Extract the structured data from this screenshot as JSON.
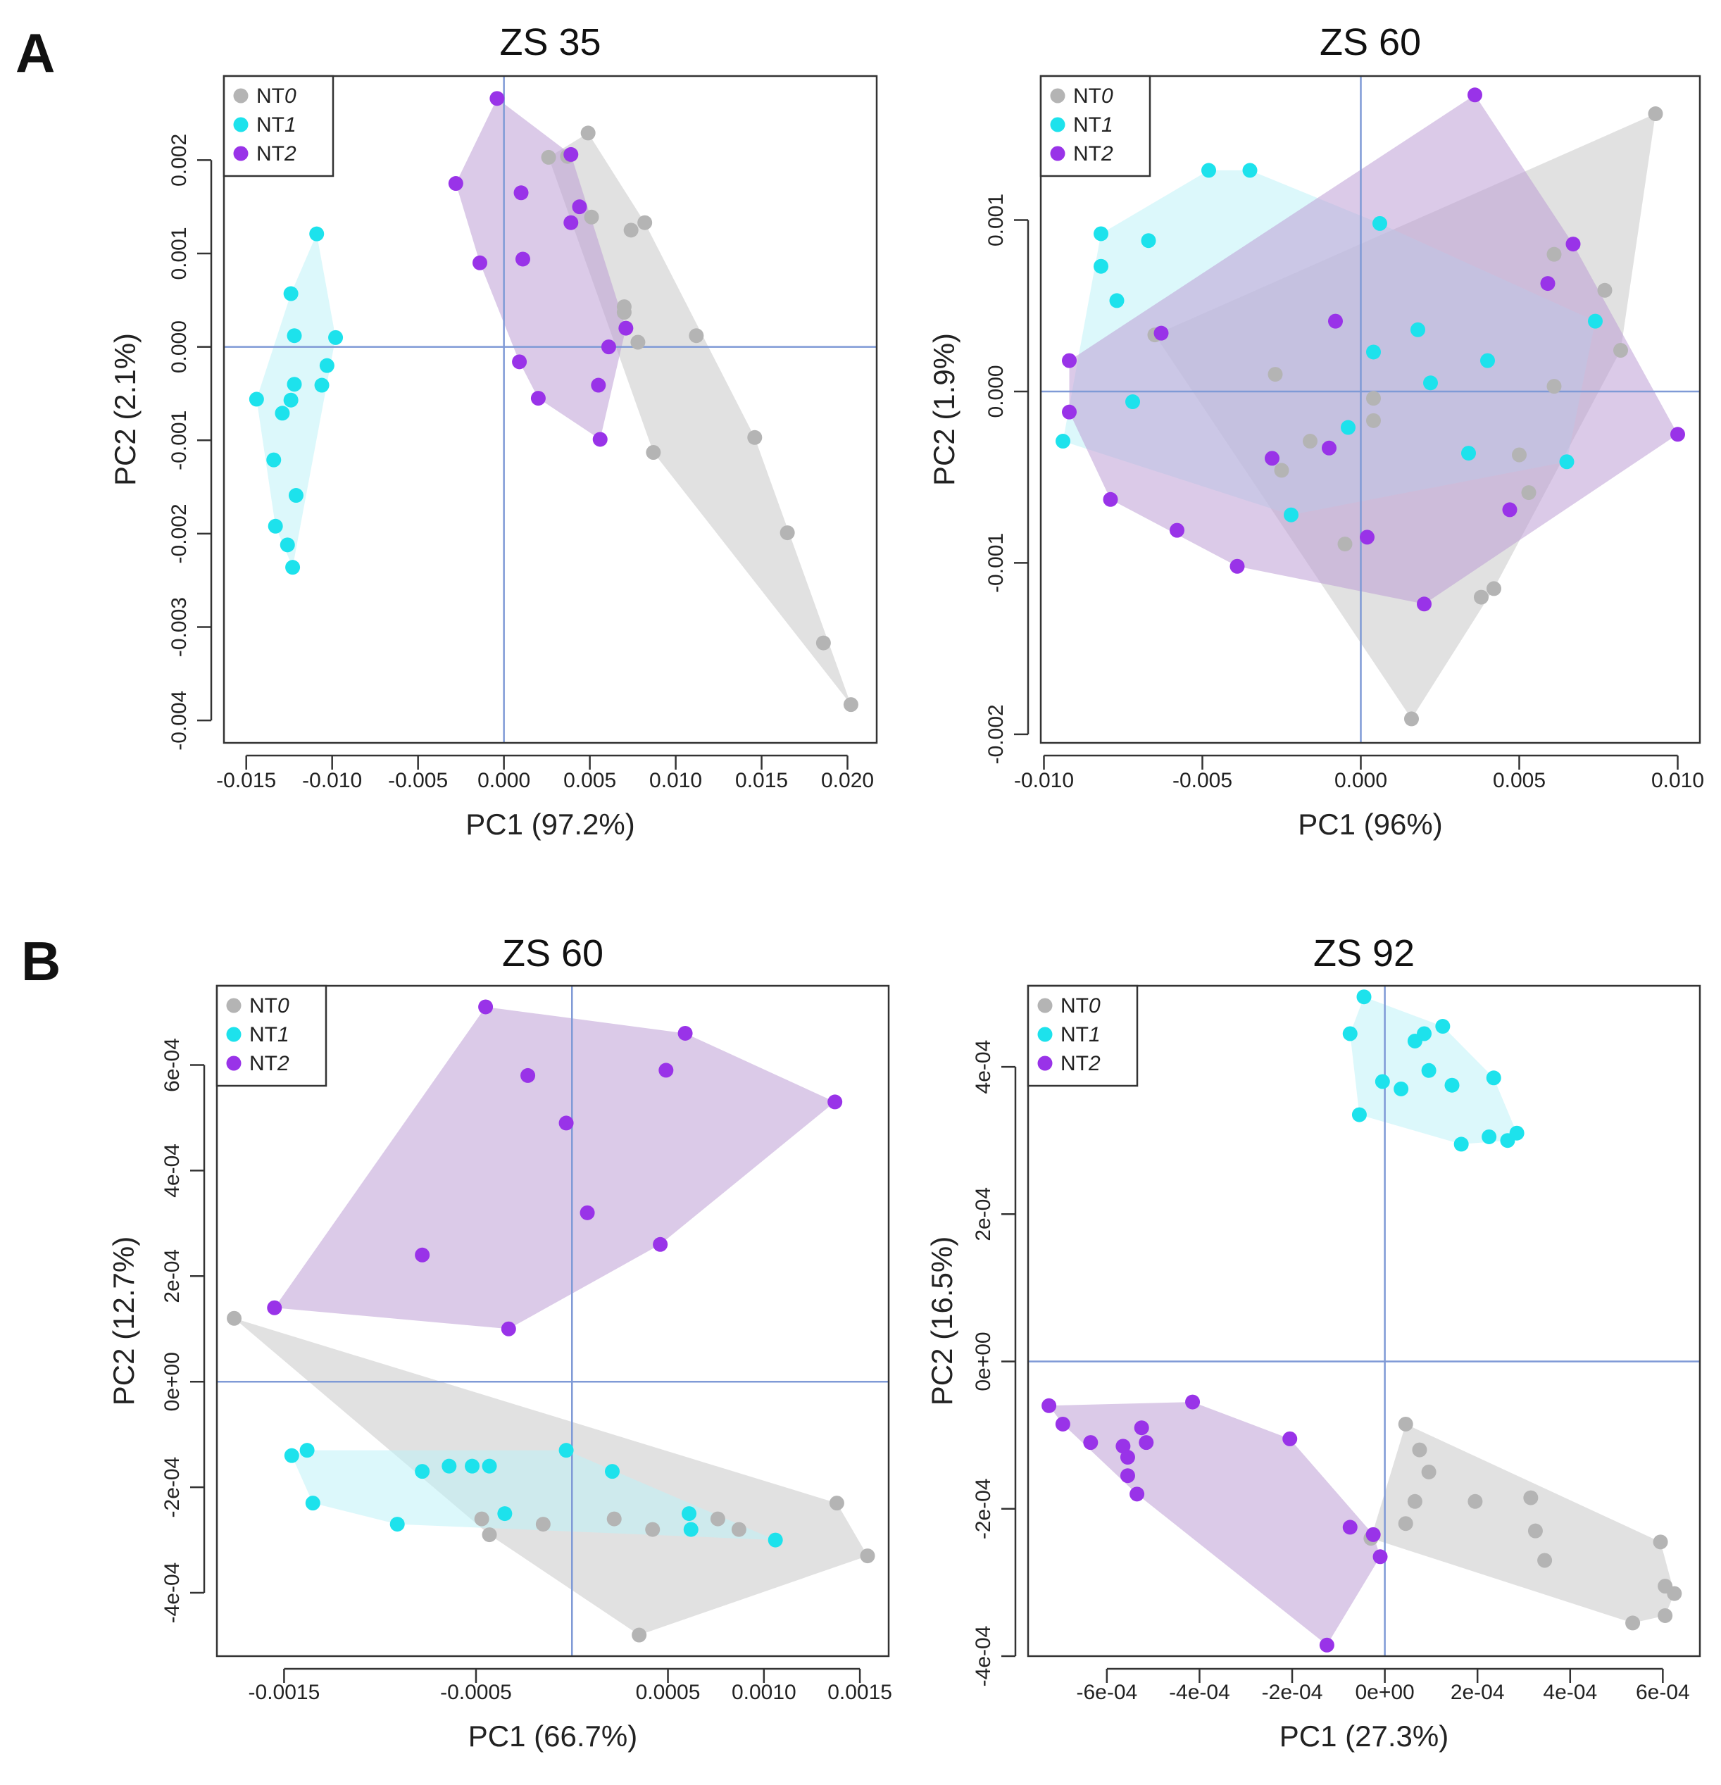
{
  "panel_labels": [
    "A",
    "B"
  ],
  "groups": [
    {
      "name": "NT0",
      "prefix": "NT",
      "suffix": "0",
      "color": "#b4b4b4",
      "fill": "#c9c9c9"
    },
    {
      "name": "NT1",
      "prefix": "NT",
      "suffix": "1",
      "color": "#1de2ec",
      "fill": "#bff3f7"
    },
    {
      "name": "NT2",
      "prefix": "NT",
      "suffix": "2",
      "color": "#9933e8",
      "fill": "#bd9fd6"
    }
  ],
  "axis_line_color": "#7f9ad6",
  "chart_data": [
    {
      "type": "scatter",
      "panel": "A",
      "title": "ZS 35",
      "xlabel": "PC1 (97.2%)",
      "ylabel": "PC2 (2.1%)",
      "xlim": [
        -0.0163,
        0.0217
      ],
      "ylim": [
        -0.00424,
        0.0029
      ],
      "xticks": [
        -0.015,
        -0.01,
        -0.005,
        0.0,
        0.005,
        0.01,
        0.015,
        0.02
      ],
      "xtick_labels": [
        "-0.015",
        "-0.010",
        "-0.005",
        "0.000",
        "0.005",
        "0.010",
        "0.015",
        "0.020"
      ],
      "yticks": [
        0.002,
        0.001,
        0.0,
        -0.001,
        -0.002,
        -0.003,
        -0.004
      ],
      "ytick_labels": [
        "0.002",
        "0.001",
        "0.000",
        "-0.001",
        "-0.002",
        "-0.003",
        "-0.004"
      ],
      "series": [
        {
          "name": "NT0",
          "points": [
            [
              0.0026,
              0.00203
            ],
            [
              0.0037,
              0.00204
            ],
            [
              0.0049,
              0.00229
            ],
            [
              0.0051,
              0.00139
            ],
            [
              0.0074,
              0.00125
            ],
            [
              0.0082,
              0.00133
            ],
            [
              0.007,
              0.00043
            ],
            [
              0.007,
              0.00037
            ],
            [
              0.0078,
              5e-05
            ],
            [
              0.0112,
              0.00012
            ],
            [
              0.0087,
              -0.00113
            ],
            [
              0.0146,
              -0.00097
            ],
            [
              0.0165,
              -0.00199
            ],
            [
              0.0186,
              -0.00317
            ],
            [
              0.0202,
              -0.00383
            ]
          ]
        },
        {
          "name": "NT1",
          "points": [
            [
              -0.0109,
              0.00121
            ],
            [
              -0.0124,
              0.00057
            ],
            [
              -0.0122,
              0.00012
            ],
            [
              -0.0098,
              0.0001
            ],
            [
              -0.0103,
              -0.0002
            ],
            [
              -0.0122,
              -0.0004
            ],
            [
              -0.0106,
              -0.00041
            ],
            [
              -0.0144,
              -0.00056
            ],
            [
              -0.0124,
              -0.00057
            ],
            [
              -0.0129,
              -0.00071
            ],
            [
              -0.0134,
              -0.00121
            ],
            [
              -0.0121,
              -0.00159
            ],
            [
              -0.0133,
              -0.00192
            ],
            [
              -0.0126,
              -0.00212
            ],
            [
              -0.0123,
              -0.00236
            ]
          ]
        },
        {
          "name": "NT2",
          "points": [
            [
              -0.0004,
              0.00266
            ],
            [
              0.0039,
              0.00206
            ],
            [
              -0.0028,
              0.00175
            ],
            [
              0.001,
              0.00165
            ],
            [
              0.0044,
              0.0015
            ],
            [
              0.0039,
              0.00133
            ],
            [
              -0.0014,
              0.0009
            ],
            [
              0.0011,
              0.00094
            ],
            [
              0.0071,
              0.0002
            ],
            [
              0.0061,
              0.0
            ],
            [
              0.0009,
              -0.00016
            ],
            [
              0.002,
              -0.00055
            ],
            [
              0.0055,
              -0.00041
            ],
            [
              0.0056,
              -0.00099
            ]
          ]
        }
      ]
    },
    {
      "type": "scatter",
      "panel": "A",
      "title": "ZS 60",
      "xlabel": "PC1 (96%)",
      "ylabel": "PC2 (1.9%)",
      "xlim": [
        -0.0101,
        0.0107
      ],
      "ylim": [
        -0.00205,
        0.00184
      ],
      "xticks": [
        -0.01,
        -0.005,
        0.0,
        0.005,
        0.01
      ],
      "xtick_labels": [
        "-0.010",
        "-0.005",
        "0.000",
        "0.005",
        "0.010"
      ],
      "yticks": [
        0.001,
        0.0,
        -0.001,
        -0.002
      ],
      "ytick_labels": [
        "0.001",
        "0.000",
        "-0.001",
        "-0.002"
      ],
      "series": [
        {
          "name": "NT0",
          "points": [
            [
              0.0093,
              0.00162
            ],
            [
              0.0061,
              0.0008
            ],
            [
              0.0077,
              0.00059
            ],
            [
              0.0082,
              0.00024
            ],
            [
              -0.0065,
              0.00033
            ],
            [
              -0.0027,
              0.0001
            ],
            [
              0.0004,
              -4e-05
            ],
            [
              0.0061,
              3e-05
            ],
            [
              0.0004,
              -0.00017
            ],
            [
              -0.0016,
              -0.00029
            ],
            [
              -0.0025,
              -0.00046
            ],
            [
              0.005,
              -0.00037
            ],
            [
              0.0053,
              -0.00059
            ],
            [
              -0.0005,
              -0.00089
            ],
            [
              0.0042,
              -0.00115
            ],
            [
              0.0038,
              -0.0012
            ],
            [
              0.0016,
              -0.00191
            ]
          ]
        },
        {
          "name": "NT1",
          "points": [
            [
              -0.0048,
              0.00129
            ],
            [
              -0.0035,
              0.00129
            ],
            [
              -0.0082,
              0.00092
            ],
            [
              -0.0067,
              0.00088
            ],
            [
              0.0006,
              0.00098
            ],
            [
              -0.0082,
              0.00073
            ],
            [
              -0.0077,
              0.00053
            ],
            [
              0.0074,
              0.00041
            ],
            [
              0.0018,
              0.00036
            ],
            [
              0.0004,
              0.00023
            ],
            [
              0.004,
              0.00018
            ],
            [
              0.0022,
              5e-05
            ],
            [
              -0.0072,
              -6e-05
            ],
            [
              -0.0004,
              -0.00021
            ],
            [
              -0.0094,
              -0.00029
            ],
            [
              0.0034,
              -0.00036
            ],
            [
              0.0065,
              -0.00041
            ],
            [
              -0.0022,
              -0.00072
            ]
          ]
        },
        {
          "name": "NT2",
          "points": [
            [
              0.0036,
              0.00173
            ],
            [
              0.0067,
              0.00086
            ],
            [
              0.0059,
              0.00063
            ],
            [
              -0.0063,
              0.00034
            ],
            [
              -0.0008,
              0.00041
            ],
            [
              -0.0092,
              0.00018
            ],
            [
              -0.0092,
              -0.00012
            ],
            [
              -0.001,
              -0.00033
            ],
            [
              -0.0028,
              -0.00039
            ],
            [
              0.01,
              -0.00025
            ],
            [
              -0.0079,
              -0.00063
            ],
            [
              -0.0058,
              -0.00081
            ],
            [
              0.0047,
              -0.00069
            ],
            [
              0.0002,
              -0.00085
            ],
            [
              -0.0039,
              -0.00102
            ],
            [
              0.002,
              -0.00124
            ]
          ]
        }
      ]
    },
    {
      "type": "scatter",
      "panel": "B",
      "title": "ZS 60",
      "xlabel": "PC1 (66.7%)",
      "ylabel": "PC2 (12.7%)",
      "xlim": [
        -0.00185,
        0.00165
      ],
      "ylim": [
        -0.00052,
        0.00075
      ],
      "xticks": [
        -0.0015,
        -0.0005,
        0.0005,
        0.001,
        0.0015
      ],
      "xtick_labels": [
        "-0.0015",
        "-0.0005",
        "0.0005",
        "0.0010",
        "0.0015"
      ],
      "yticks": [
        0.0006,
        0.0004,
        0.0002,
        0.0,
        -0.0002,
        -0.0004
      ],
      "ytick_labels": [
        "6e-04",
        "4e-04",
        "2e-04",
        "0e+00",
        "-2e-04",
        "-4e-04"
      ],
      "series": [
        {
          "name": "NT0",
          "points": [
            [
              -0.00176,
              0.00012
            ],
            [
              0.00138,
              -0.00023
            ],
            [
              0.00154,
              -0.00033
            ],
            [
              0.00035,
              -0.00048
            ],
            [
              -0.00047,
              -0.00026
            ],
            [
              -0.00043,
              -0.00029
            ],
            [
              -0.00015,
              -0.00027
            ],
            [
              0.00022,
              -0.00026
            ],
            [
              0.00042,
              -0.00028
            ],
            [
              0.00076,
              -0.00026
            ],
            [
              0.00087,
              -0.00028
            ]
          ]
        },
        {
          "name": "NT1",
          "points": [
            [
              -0.00146,
              -0.00014
            ],
            [
              -0.00138,
              -0.00013
            ],
            [
              -0.00135,
              -0.00023
            ],
            [
              -0.00078,
              -0.00017
            ],
            [
              -0.00064,
              -0.00016
            ],
            [
              -0.00052,
              -0.00016
            ],
            [
              -0.00043,
              -0.00016
            ],
            [
              -3e-05,
              -0.00013
            ],
            [
              0.00021,
              -0.00017
            ],
            [
              -0.00091,
              -0.00027
            ],
            [
              -0.00035,
              -0.00025
            ],
            [
              0.00061,
              -0.00025
            ],
            [
              0.00062,
              -0.00028
            ],
            [
              0.00106,
              -0.0003
            ]
          ]
        },
        {
          "name": "NT2",
          "points": [
            [
              -0.00045,
              0.00071
            ],
            [
              0.00059,
              0.00066
            ],
            [
              -0.00023,
              0.00058
            ],
            [
              0.00049,
              0.00059
            ],
            [
              0.00137,
              0.00053
            ],
            [
              -3e-05,
              0.00049
            ],
            [
              8e-05,
              0.00032
            ],
            [
              -0.00078,
              0.00024
            ],
            [
              0.00046,
              0.00026
            ],
            [
              -0.00155,
              0.00014
            ],
            [
              -0.00033,
              0.0001
            ]
          ]
        }
      ]
    },
    {
      "type": "scatter",
      "panel": "B",
      "title": "ZS 92",
      "xlabel": "PC1 (27.3%)",
      "ylabel": "PC2 (16.5%)",
      "xlim": [
        -0.00077,
        0.00068
      ],
      "ylim": [
        -0.0004,
        0.00051
      ],
      "xticks": [
        -0.0006,
        -0.0004,
        -0.0002,
        0.0,
        0.0002,
        0.0004,
        0.0006
      ],
      "xtick_labels": [
        "-6e-04",
        "-4e-04",
        "-2e-04",
        "0e+00",
        "2e-04",
        "4e-04",
        "6e-04"
      ],
      "yticks": [
        0.0004,
        0.0002,
        0.0,
        -0.0002,
        -0.0004
      ],
      "ytick_labels": [
        "4e-04",
        "2e-04",
        "0e+00",
        "-2e-04",
        "-4e-04"
      ],
      "series": [
        {
          "name": "NT0",
          "points": [
            [
              4.5e-05,
              -8.5e-05
            ],
            [
              7.5e-05,
              -0.00012
            ],
            [
              9.5e-05,
              -0.00015
            ],
            [
              6.5e-05,
              -0.00019
            ],
            [
              0.000195,
              -0.00019
            ],
            [
              0.000315,
              -0.000185
            ],
            [
              0.000325,
              -0.00023
            ],
            [
              4.5e-05,
              -0.00022
            ],
            [
              0.000345,
              -0.00027
            ],
            [
              0.000595,
              -0.000245
            ],
            [
              0.000605,
              -0.000305
            ],
            [
              0.000625,
              -0.000315
            ],
            [
              0.000605,
              -0.000345
            ],
            [
              0.000535,
              -0.000355
            ],
            [
              -3e-05,
              -0.00024
            ]
          ]
        },
        {
          "name": "NT1",
          "points": [
            [
              -4.5e-05,
              0.000495
            ],
            [
              -7.5e-05,
              0.000445
            ],
            [
              6.5e-05,
              0.000435
            ],
            [
              8.5e-05,
              0.000445
            ],
            [
              0.000125,
              0.000455
            ],
            [
              9.5e-05,
              0.000395
            ],
            [
              0.000235,
              0.000385
            ],
            [
              -5e-06,
              0.00038
            ],
            [
              3.5e-05,
              0.00037
            ],
            [
              0.000145,
              0.000375
            ],
            [
              -5.5e-05,
              0.000335
            ],
            [
              0.000225,
              0.000305
            ],
            [
              0.000265,
              0.0003
            ],
            [
              0.000285,
              0.00031
            ],
            [
              0.000165,
              0.000295
            ]
          ]
        },
        {
          "name": "NT2",
          "points": [
            [
              -0.000725,
              -6e-05
            ],
            [
              -0.000695,
              -8.5e-05
            ],
            [
              -0.000635,
              -0.00011
            ],
            [
              -0.000565,
              -0.000115
            ],
            [
              -0.000555,
              -0.00013
            ],
            [
              -0.000525,
              -9e-05
            ],
            [
              -0.000515,
              -0.00011
            ],
            [
              -0.000555,
              -0.000155
            ],
            [
              -0.000535,
              -0.00018
            ],
            [
              -0.000415,
              -5.5e-05
            ],
            [
              -0.000205,
              -0.000105
            ],
            [
              -7.5e-05,
              -0.000225
            ],
            [
              -2.5e-05,
              -0.000235
            ],
            [
              -1e-05,
              -0.000265
            ],
            [
              -0.000125,
              -0.000385
            ]
          ]
        }
      ]
    }
  ]
}
